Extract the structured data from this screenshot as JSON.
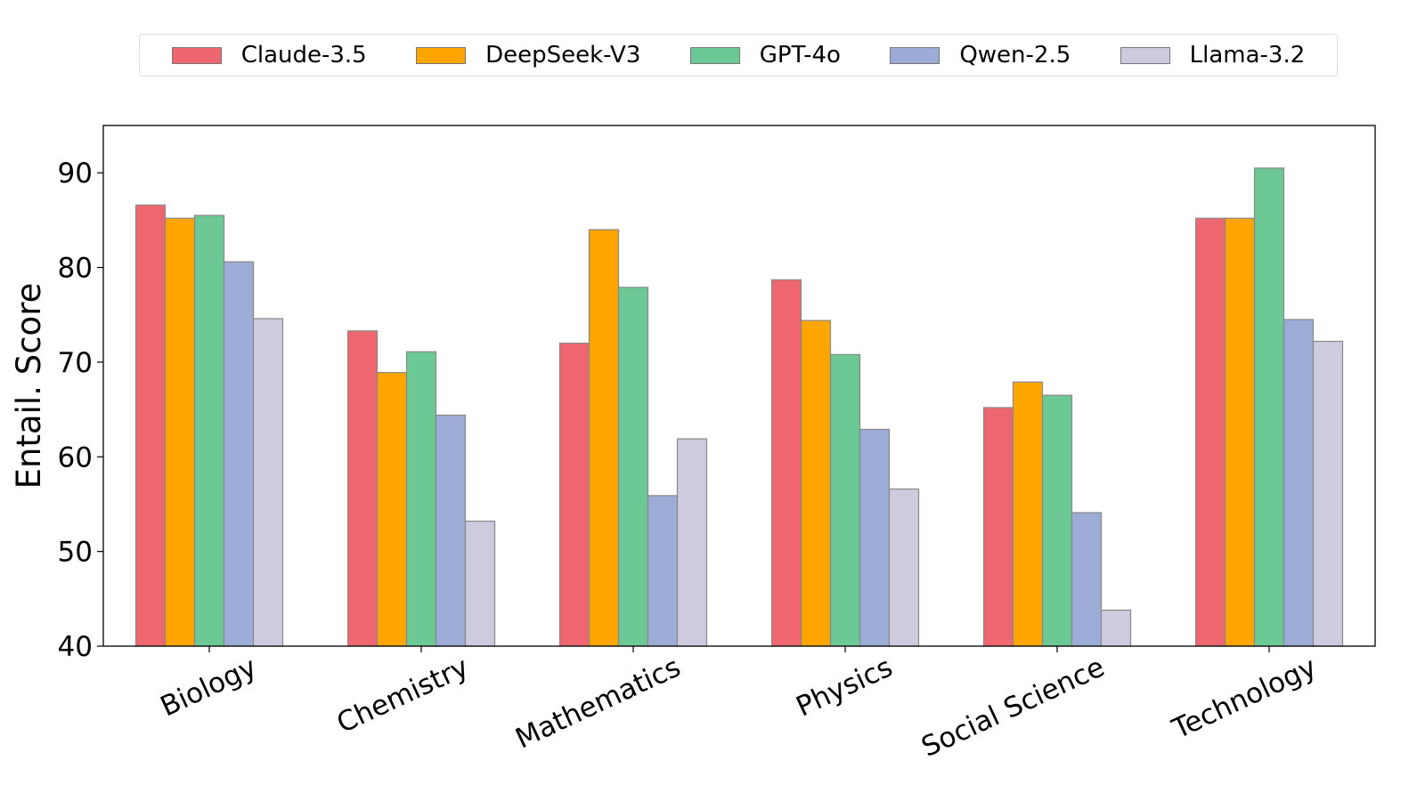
{
  "chart_data": {
    "type": "bar",
    "title": "",
    "xlabel": "",
    "ylabel": "Entail. Score",
    "ylim": [
      40,
      95
    ],
    "yticks": [
      40,
      50,
      60,
      70,
      80,
      90
    ],
    "grid": false,
    "legend_position": "top-center",
    "categories": [
      "Biology",
      "Chemistry",
      "Mathematics",
      "Physics",
      "Social Science",
      "Technology"
    ],
    "series": [
      {
        "name": "Claude-3.5",
        "color": "#ee6670",
        "values": [
          86.6,
          73.3,
          72.0,
          78.7,
          65.2,
          85.2
        ]
      },
      {
        "name": "DeepSeek-V3",
        "color": "#ffa500",
        "values": [
          85.2,
          68.9,
          84.0,
          74.4,
          67.9,
          85.2
        ]
      },
      {
        "name": "GPT-4o",
        "color": "#6cc995",
        "values": [
          85.5,
          71.1,
          77.9,
          70.8,
          66.5,
          90.5
        ]
      },
      {
        "name": "Qwen-2.5",
        "color": "#9dacd6",
        "values": [
          80.6,
          64.4,
          55.9,
          62.9,
          54.1,
          74.5
        ]
      },
      {
        "name": "Llama-3.2",
        "color": "#cfcbdf",
        "values": [
          74.6,
          53.2,
          61.9,
          56.6,
          43.8,
          72.2
        ]
      }
    ]
  }
}
